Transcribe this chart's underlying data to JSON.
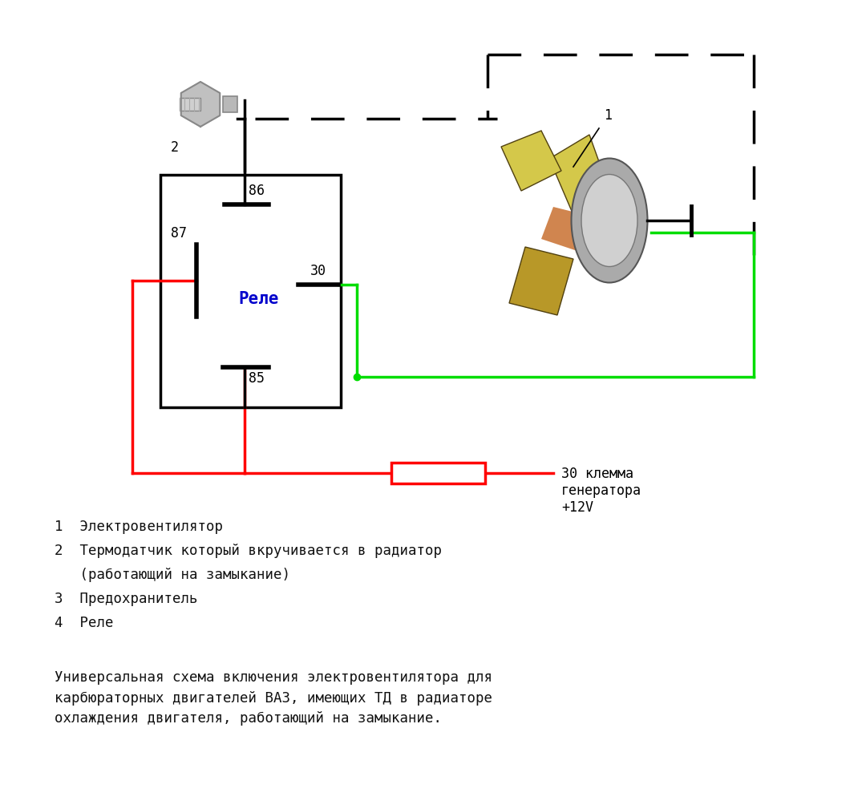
{
  "bg_color": "#ffffff",
  "red_color": "#ff0000",
  "green_color": "#00dd00",
  "black_color": "#000000",
  "blue_color": "#0000cc",
  "relay_label": "Реле",
  "generator_label": "30 клемма\nгенератора\n+12V",
  "text_lines": [
    "1  Электровентилятор",
    "2  Термодатчик который вкручивается в радиатор",
    "   (работающий на замыкание)",
    "3  Предохранитель",
    "4  Реле"
  ],
  "bottom_text": "Универсальная схема включения электровентилятора для\nкарбюраторных двигателей ВАЗ, имеющих ТД в радиаторе\nохлаждения двигателя, работающий на замыкание.",
  "lw": 2.5,
  "lw_thick": 3.5,
  "blade_color1": "#d4c84a",
  "blade_color2": "#b89828",
  "motor_color": "#b0b0b0",
  "motor_cap_color": "#d4d4d4",
  "sensor_color": "#c8c8c8",
  "rust_color": "#c87030"
}
